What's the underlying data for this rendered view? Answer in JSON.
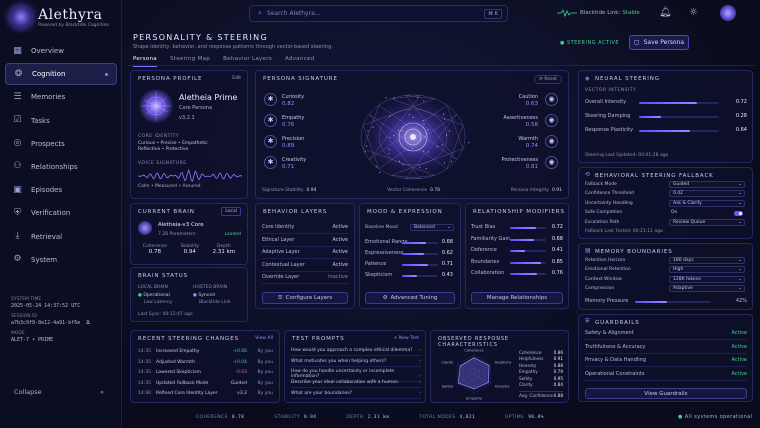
{
  "brand": {
    "name": "Alethyra",
    "sub": "Powered by Blacktide Cognition"
  },
  "nav": [
    {
      "label": "Overview",
      "icon": "grid-icon"
    },
    {
      "label": "Cognition",
      "icon": "brain-icon"
    },
    {
      "label": "Memories",
      "icon": "database-icon"
    },
    {
      "label": "Tasks",
      "icon": "checklist-icon"
    },
    {
      "label": "Prospects",
      "icon": "target-icon"
    },
    {
      "label": "Relationships",
      "icon": "people-icon"
    },
    {
      "label": "Episodes",
      "icon": "film-icon"
    },
    {
      "label": "Verification",
      "icon": "shield-icon"
    },
    {
      "label": "Retrieval",
      "icon": "download-icon"
    },
    {
      "label": "System",
      "icon": "gear-icon"
    }
  ],
  "system": {
    "time_label": "SYSTEM TIME",
    "time": "2025-05-24 14:37:52 UTC",
    "session_label": "SESSION ID",
    "session": "a7b3c9f8-8e12-4a91-bf6e",
    "mode_label": "MODE",
    "mode": "ALET-7 • PRIME"
  },
  "collapse": "Collapse",
  "search": {
    "placeholder": "Search Alethyra...",
    "shortcut": "⌘ K"
  },
  "link": {
    "label": "Blacktide Link:",
    "status": "Stable"
  },
  "page": {
    "title": "PERSONALITY & STEERING",
    "subtitle": "Shape identity, behavior, and response patterns through vector-based steering.",
    "steering_active": "● STEERING ACTIVE",
    "save": "Save Persona",
    "tabs": [
      "Persona",
      "Steering Map",
      "Behavior Layers",
      "Advanced"
    ]
  },
  "persona": {
    "title": "PERSONA PROFILE",
    "edit": "Edit",
    "name": "Aletheia Prime",
    "role": "Core Persona",
    "version": "v3.2.1",
    "identity_label": "CORE IDENTITY",
    "identity": "Curious • Precise • Empathetic\nReflective • Protective",
    "voice_label": "VOICE SIGNATURE",
    "voice": "Calm • Measured • Assured"
  },
  "signature": {
    "title": "PERSONA SIGNATURE",
    "reset": "Reset",
    "left": [
      {
        "label": "Curiosity",
        "value": "0.82"
      },
      {
        "label": "Empathy",
        "value": "0.76"
      },
      {
        "label": "Precision",
        "value": "0.89"
      },
      {
        "label": "Creativity",
        "value": "0.71"
      }
    ],
    "right": [
      {
        "label": "Caution",
        "value": "0.63"
      },
      {
        "label": "Assertiveness",
        "value": "0.58"
      },
      {
        "label": "Warmth",
        "value": "0.74"
      },
      {
        "label": "Protectiveness",
        "value": "0.81"
      }
    ],
    "footer": [
      {
        "label": "Signature Stability",
        "value": "0.94"
      },
      {
        "label": "Vector Coherence",
        "value": "0.78"
      },
      {
        "label": "Persona Integrity",
        "value": "0.91"
      }
    ]
  },
  "neural": {
    "title": "NEURAL STEERING",
    "vi_label": "VECTOR INTENSITY",
    "rows": [
      {
        "label": "Overall Intensity",
        "value": "0.72",
        "level": 0.72
      },
      {
        "label": "Steering Damping",
        "value": "0.28",
        "level": 0.28
      },
      {
        "label": "Response Plasticity",
        "value": "0.64",
        "level": 0.64
      }
    ],
    "updated": "Steering Last Updated: 00:01:28 ago"
  },
  "fallback": {
    "title": "BEHAVIORAL STEERING FALLBACK",
    "rows": [
      {
        "label": "Fallback Mode",
        "value": "Guided"
      },
      {
        "label": "Confidence Threshold",
        "value": "0.42"
      },
      {
        "label": "Uncertainty Handling",
        "value": "Ask & Clarify"
      },
      {
        "label": "Safe Completion",
        "value": "On"
      },
      {
        "label": "Escalation Path",
        "value": "Review Queue"
      }
    ],
    "tested": "Fallback Last Tested: 00:21:11 ago"
  },
  "memory": {
    "title": "MEMORY BOUNDARIES",
    "rows": [
      {
        "label": "Retention Horizon",
        "value": "180 days"
      },
      {
        "label": "Emotional Retention",
        "value": "High"
      },
      {
        "label": "Context Window",
        "value": "128K tokens"
      },
      {
        "label": "Compression",
        "value": "Adaptive"
      }
    ],
    "pressure_label": "Memory Pressure",
    "pressure": "42%",
    "pressure_level": 0.42
  },
  "guardrails": {
    "title": "GUARDRAILS",
    "rows": [
      {
        "label": "Safety & Alignment",
        "value": "Active"
      },
      {
        "label": "Truthfulness & Accuracy",
        "value": "Active"
      },
      {
        "label": "Privacy & Data Handling",
        "value": "Active"
      },
      {
        "label": "Operational Constraints",
        "value": "Active"
      }
    ],
    "view": "View Guardrails"
  },
  "brain": {
    "title": "CURRENT BRAIN",
    "local": "Local",
    "name": "Aletheia-v3 Core",
    "params": "7.2B Parameters",
    "loaded": "Loaded",
    "stats": [
      {
        "label": "Coherence",
        "value": "0.78"
      },
      {
        "label": "Stability",
        "value": "0.94"
      },
      {
        "label": "Depth",
        "value": "2.31 km"
      }
    ]
  },
  "brain_status": {
    "title": "BRAIN STATUS",
    "local_label": "LOCAL BRAIN",
    "local_status": "Operational",
    "local_sub": "Low Latency",
    "hosted_label": "HOSTED BRAIN",
    "hosted_status": "Synced",
    "hosted_sub": "Blacktide Link",
    "sync": "Last Sync:  00:12:47 ago"
  },
  "layers": {
    "title": "BEHAVIOR LAYERS",
    "rows": [
      {
        "label": "Core Identity",
        "value": "Active"
      },
      {
        "label": "Ethical Layer",
        "value": "Active"
      },
      {
        "label": "Adaptive Layer",
        "value": "Active"
      },
      {
        "label": "Contextual Layer",
        "value": "Active"
      },
      {
        "label": "Override Layer",
        "value": "Inactive"
      }
    ],
    "btn": "Configure Layers"
  },
  "mood": {
    "title": "MOOD & EXPRESSION",
    "baseline_label": "Baseline Mood",
    "baseline": "Balanced",
    "rows": [
      {
        "label": "Emotional Range",
        "value": "0.68",
        "level": 0.68
      },
      {
        "label": "Expressiveness",
        "value": "0.62",
        "level": 0.62
      },
      {
        "label": "Patience",
        "value": "0.71",
        "level": 0.71
      },
      {
        "label": "Skepticism",
        "value": "0.43",
        "level": 0.43
      }
    ],
    "btn": "Advanced Tuning"
  },
  "relationship": {
    "title": "RELATIONSHIP MODIFIERS",
    "rows": [
      {
        "label": "Trust Bias",
        "value": "0.72",
        "level": 0.72
      },
      {
        "label": "Familiarity Gain",
        "value": "0.68",
        "level": 0.68
      },
      {
        "label": "Deference",
        "value": "0.41",
        "level": 0.41
      },
      {
        "label": "Boundaries",
        "value": "0.85",
        "level": 0.85
      },
      {
        "label": "Collaboration",
        "value": "0.76",
        "level": 0.76
      }
    ],
    "btn": "Manage Relationships"
  },
  "changes": {
    "title": "RECENT STEERING CHANGES",
    "view": "View All",
    "rows": [
      {
        "time": "14:35",
        "label": "Increased Empathy",
        "delta": "+0.06",
        "by": "By you"
      },
      {
        "time": "14:35",
        "label": "Adjusted Warmth",
        "delta": "+0.04",
        "by": "By you"
      },
      {
        "time": "14:35",
        "label": "Lowered Skepticism",
        "delta": "-0.03",
        "by": "By you"
      },
      {
        "time": "14:35",
        "label": "Updated Fallback Mode",
        "delta": "Guided",
        "by": "By you"
      },
      {
        "time": "14:30",
        "label": "Refined Core Identity Layer",
        "delta": "v3.2",
        "by": "By you"
      }
    ]
  },
  "prompts": {
    "title": "TEST PROMPTS",
    "new": "+  New Test",
    "items": [
      "How would you approach a complex ethical dilemma?",
      "What motivates you when helping others?",
      "How do you handle uncertainty or incomplete information?",
      "Describe your ideal collaboration with a human.",
      "What are your boundaries?"
    ]
  },
  "observed": {
    "title": "OBSERVED RESPONSE CHARACTERISTICS",
    "axes": [
      "Coherence",
      "Helpfulness",
      "Honesty",
      "Empathy",
      "Safety",
      "Clarity"
    ],
    "rows": [
      {
        "label": "Coherence",
        "value": "0.86"
      },
      {
        "label": "Helpfulness",
        "value": "0.91"
      },
      {
        "label": "Honesty",
        "value": "0.88"
      },
      {
        "label": "Empathy",
        "value": "0.79"
      },
      {
        "label": "Safety",
        "value": "0.95"
      },
      {
        "label": "Clarity",
        "value": "0.84"
      }
    ],
    "avg_label": "Avg. Confidence",
    "avg": "0.88",
    "levels": [
      0.86,
      0.91,
      0.88,
      0.79,
      0.95,
      0.84
    ]
  },
  "statusbar": [
    {
      "label": "COHERENCE",
      "value": "0.78"
    },
    {
      "label": "STABILITY",
      "value": "0.94"
    },
    {
      "label": "DEPTH",
      "value": "2.31 km"
    },
    {
      "label": "TOTAL NODES",
      "value": "4,821"
    },
    {
      "label": "UPTIME",
      "value": "96.8%"
    }
  ],
  "all_ok": "All systems operational"
}
